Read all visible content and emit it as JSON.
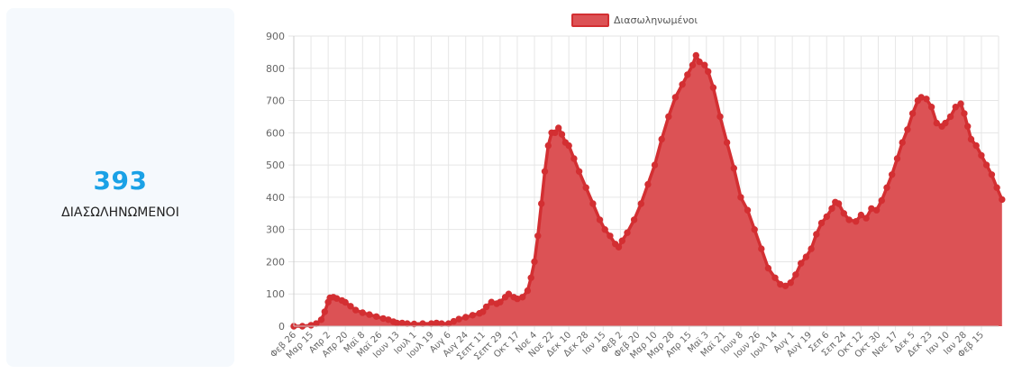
{
  "stat": {
    "value": "393",
    "label": "ΔΙΑΣΩΛΗΝΩΜΕΝΟΙ"
  },
  "colors": {
    "accent": "#1aa1e6",
    "series_fill": "#dc5255",
    "series_line": "#d32f32",
    "grid": "#e6e6e6"
  },
  "chart_data": {
    "type": "area",
    "legend_position": "top-center",
    "grid": true,
    "ylim": [
      0,
      900
    ],
    "yticks": [
      0,
      100,
      200,
      300,
      400,
      500,
      600,
      700,
      800,
      900
    ],
    "x_tick_labels": [
      "Φεβ 26",
      "Μαρ 15",
      "Απρ 2",
      "Απρ 20",
      "Μαϊ 8",
      "Μαϊ 26",
      "Ιουν 13",
      "Ιουλ 1",
      "Ιουλ 19",
      "Αυγ 6",
      "Αυγ 24",
      "Σεπτ 11",
      "Σεπτ 29",
      "Οκτ 17",
      "Νοε 4",
      "Νοε 22",
      "Δεκ 10",
      "Δεκ 28",
      "Ιαν 15",
      "Φεβ 2",
      "Φεβ 20",
      "Μαρ 10",
      "Μαρ 28",
      "Απρ 15",
      "Μαϊ 3",
      "Μαϊ 21",
      "Ιουν 8",
      "Ιουν 26",
      "Ιουλ 14",
      "Αυγ 1",
      "Αυγ 19",
      "Σεπ 6",
      "Σεπ 24",
      "Οκτ 12",
      "Οκτ 30",
      "Νοε 17",
      "Δεκ 5",
      "Δεκ 23",
      "Ιαν 10",
      "Ιαν 28",
      "Φεβ 15"
    ],
    "series": [
      {
        "name": "Διασωληνωμένοι",
        "points": [
          [
            0,
            0
          ],
          [
            0.5,
            0
          ],
          [
            1,
            3
          ],
          [
            1.3,
            8
          ],
          [
            1.6,
            20
          ],
          [
            1.8,
            45
          ],
          [
            2,
            75
          ],
          [
            2.1,
            88
          ],
          [
            2.3,
            90
          ],
          [
            2.5,
            86
          ],
          [
            2.8,
            80
          ],
          [
            3,
            74
          ],
          [
            3.3,
            62
          ],
          [
            3.6,
            50
          ],
          [
            4,
            42
          ],
          [
            4.4,
            36
          ],
          [
            4.8,
            30
          ],
          [
            5.2,
            24
          ],
          [
            5.5,
            20
          ],
          [
            5.8,
            14
          ],
          [
            6,
            10
          ],
          [
            6.3,
            10
          ],
          [
            6.6,
            8
          ],
          [
            7,
            7
          ],
          [
            7.5,
            8
          ],
          [
            8,
            8
          ],
          [
            8.3,
            10
          ],
          [
            8.6,
            8
          ],
          [
            9,
            8
          ],
          [
            9.3,
            15
          ],
          [
            9.6,
            22
          ],
          [
            10,
            28
          ],
          [
            10.4,
            34
          ],
          [
            10.8,
            40
          ],
          [
            11,
            45
          ],
          [
            11.2,
            60
          ],
          [
            11.5,
            75
          ],
          [
            11.8,
            70
          ],
          [
            12,
            75
          ],
          [
            12.3,
            90
          ],
          [
            12.5,
            100
          ],
          [
            12.8,
            90
          ],
          [
            13,
            85
          ],
          [
            13.3,
            90
          ],
          [
            13.6,
            110
          ],
          [
            13.8,
            150
          ],
          [
            14,
            200
          ],
          [
            14.2,
            280
          ],
          [
            14.4,
            380
          ],
          [
            14.6,
            480
          ],
          [
            14.8,
            560
          ],
          [
            15,
            600
          ],
          [
            15.2,
            600
          ],
          [
            15.4,
            615
          ],
          [
            15.6,
            595
          ],
          [
            15.8,
            570
          ],
          [
            16,
            560
          ],
          [
            16.3,
            520
          ],
          [
            16.6,
            480
          ],
          [
            17,
            430
          ],
          [
            17.4,
            380
          ],
          [
            17.8,
            330
          ],
          [
            18.1,
            300
          ],
          [
            18.4,
            280
          ],
          [
            18.7,
            255
          ],
          [
            18.9,
            245
          ],
          [
            19.1,
            265
          ],
          [
            19.4,
            290
          ],
          [
            19.8,
            330
          ],
          [
            20.2,
            380
          ],
          [
            20.6,
            440
          ],
          [
            21,
            500
          ],
          [
            21.4,
            580
          ],
          [
            21.8,
            650
          ],
          [
            22.2,
            710
          ],
          [
            22.6,
            750
          ],
          [
            22.9,
            780
          ],
          [
            23.2,
            810
          ],
          [
            23.4,
            840
          ],
          [
            23.6,
            820
          ],
          [
            23.9,
            810
          ],
          [
            24.1,
            790
          ],
          [
            24.4,
            740
          ],
          [
            24.8,
            650
          ],
          [
            25.2,
            570
          ],
          [
            25.6,
            490
          ],
          [
            26,
            400
          ],
          [
            26.4,
            360
          ],
          [
            26.8,
            300
          ],
          [
            27.2,
            240
          ],
          [
            27.6,
            180
          ],
          [
            28,
            150
          ],
          [
            28.3,
            130
          ],
          [
            28.6,
            125
          ],
          [
            28.9,
            135
          ],
          [
            29.2,
            160
          ],
          [
            29.5,
            195
          ],
          [
            29.8,
            215
          ],
          [
            30.1,
            240
          ],
          [
            30.4,
            285
          ],
          [
            30.7,
            320
          ],
          [
            31,
            340
          ],
          [
            31.3,
            365
          ],
          [
            31.5,
            385
          ],
          [
            31.7,
            380
          ],
          [
            32,
            350
          ],
          [
            32.3,
            330
          ],
          [
            32.7,
            325
          ],
          [
            33,
            345
          ],
          [
            33.3,
            335
          ],
          [
            33.6,
            365
          ],
          [
            33.9,
            360
          ],
          [
            34.2,
            390
          ],
          [
            34.5,
            430
          ],
          [
            34.8,
            470
          ],
          [
            35.1,
            520
          ],
          [
            35.4,
            570
          ],
          [
            35.7,
            610
          ],
          [
            36,
            660
          ],
          [
            36.3,
            700
          ],
          [
            36.5,
            710
          ],
          [
            36.8,
            705
          ],
          [
            37.1,
            680
          ],
          [
            37.4,
            630
          ],
          [
            37.7,
            620
          ],
          [
            37.9,
            630
          ],
          [
            38.2,
            650
          ],
          [
            38.5,
            680
          ],
          [
            38.8,
            690
          ],
          [
            39,
            660
          ],
          [
            39.2,
            620
          ],
          [
            39.4,
            580
          ],
          [
            39.7,
            560
          ],
          [
            40,
            530
          ],
          [
            40.3,
            500
          ],
          [
            40.6,
            470
          ],
          [
            40.9,
            430
          ],
          [
            41.2,
            393
          ]
        ]
      }
    ]
  }
}
